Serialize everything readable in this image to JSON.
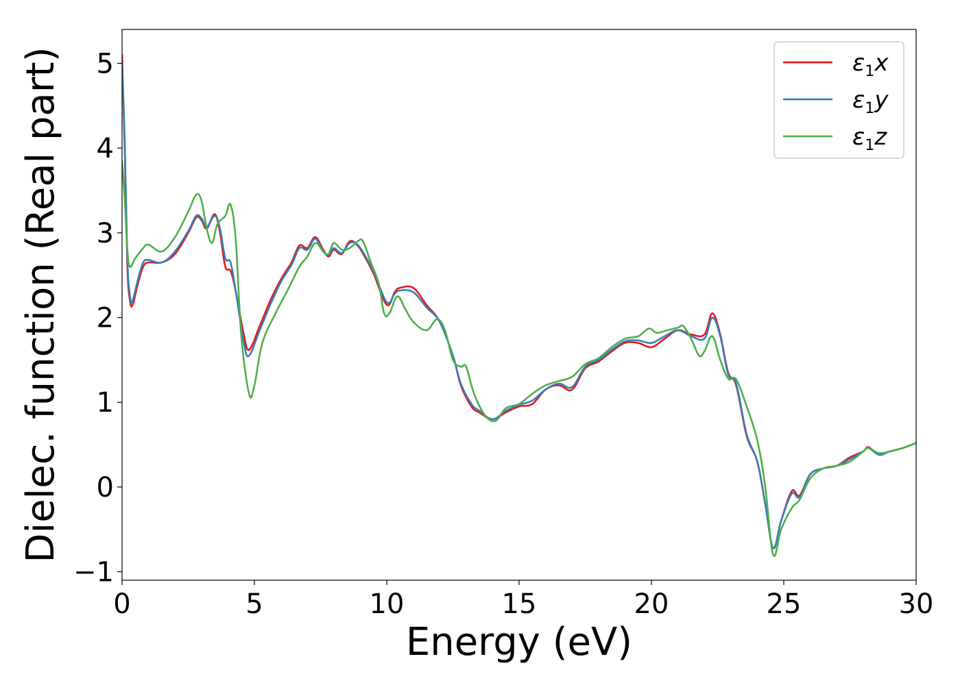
{
  "chart_data": {
    "type": "line",
    "title": "",
    "xlabel": "Energy (eV)",
    "ylabel": "Dielec. function (Real part)",
    "xlim": [
      0,
      30
    ],
    "ylim": [
      -1.1,
      5.4
    ],
    "xticks": [
      0,
      5,
      10,
      15,
      20,
      25,
      30
    ],
    "xtick_labels": [
      "0",
      "5",
      "10",
      "15",
      "20",
      "25",
      "30"
    ],
    "yticks": [
      -1,
      0,
      1,
      2,
      3,
      4,
      5
    ],
    "ytick_labels": [
      "−1",
      "0",
      "1",
      "2",
      "3",
      "4",
      "5"
    ],
    "grid": false,
    "legend_position": "top-right",
    "series": [
      {
        "name": "ε1x",
        "legend_base": "ε",
        "legend_sub": "1",
        "legend_tail": "x",
        "color": "#e41a1c",
        "points": [
          [
            0,
            5.1
          ],
          [
            0.1,
            4.0
          ],
          [
            0.2,
            2.6
          ],
          [
            0.3,
            2.2
          ],
          [
            0.4,
            2.15
          ],
          [
            0.6,
            2.4
          ],
          [
            0.8,
            2.6
          ],
          [
            1.0,
            2.65
          ],
          [
            1.5,
            2.65
          ],
          [
            2.0,
            2.75
          ],
          [
            2.5,
            3.0
          ],
          [
            2.8,
            3.18
          ],
          [
            3.0,
            3.15
          ],
          [
            3.2,
            3.05
          ],
          [
            3.5,
            3.22
          ],
          [
            3.7,
            3.0
          ],
          [
            3.9,
            2.6
          ],
          [
            4.1,
            2.55
          ],
          [
            4.3,
            2.3
          ],
          [
            4.6,
            1.8
          ],
          [
            4.8,
            1.62
          ],
          [
            5.2,
            1.9
          ],
          [
            5.6,
            2.2
          ],
          [
            6.0,
            2.45
          ],
          [
            6.4,
            2.65
          ],
          [
            6.7,
            2.85
          ],
          [
            7.0,
            2.82
          ],
          [
            7.3,
            2.95
          ],
          [
            7.6,
            2.8
          ],
          [
            7.8,
            2.72
          ],
          [
            8.0,
            2.8
          ],
          [
            8.3,
            2.75
          ],
          [
            8.6,
            2.9
          ],
          [
            8.9,
            2.85
          ],
          [
            9.2,
            2.7
          ],
          [
            9.5,
            2.52
          ],
          [
            10.0,
            2.15
          ],
          [
            10.3,
            2.3
          ],
          [
            10.5,
            2.35
          ],
          [
            11.0,
            2.35
          ],
          [
            11.5,
            2.15
          ],
          [
            12.0,
            1.95
          ],
          [
            12.5,
            1.55
          ],
          [
            12.8,
            1.2
          ],
          [
            13.2,
            0.95
          ],
          [
            13.5,
            0.88
          ],
          [
            14.0,
            0.8
          ],
          [
            14.5,
            0.88
          ],
          [
            15.0,
            0.95
          ],
          [
            15.5,
            0.98
          ],
          [
            16.0,
            1.15
          ],
          [
            16.5,
            1.2
          ],
          [
            17.0,
            1.15
          ],
          [
            17.5,
            1.4
          ],
          [
            18.0,
            1.48
          ],
          [
            18.5,
            1.6
          ],
          [
            19.0,
            1.7
          ],
          [
            19.5,
            1.7
          ],
          [
            20.0,
            1.65
          ],
          [
            20.5,
            1.75
          ],
          [
            21.0,
            1.85
          ],
          [
            21.5,
            1.8
          ],
          [
            22.0,
            1.8
          ],
          [
            22.3,
            2.05
          ],
          [
            22.6,
            1.8
          ],
          [
            22.9,
            1.35
          ],
          [
            23.2,
            1.2
          ],
          [
            23.6,
            0.6
          ],
          [
            24.0,
            0.3
          ],
          [
            24.3,
            -0.2
          ],
          [
            24.6,
            -0.72
          ],
          [
            24.9,
            -0.4
          ],
          [
            25.3,
            -0.05
          ],
          [
            25.6,
            -0.1
          ],
          [
            26.0,
            0.15
          ],
          [
            26.5,
            0.22
          ],
          [
            27.0,
            0.25
          ],
          [
            27.5,
            0.35
          ],
          [
            28.0,
            0.42
          ],
          [
            28.2,
            0.47
          ],
          [
            28.6,
            0.38
          ],
          [
            29.0,
            0.42
          ],
          [
            29.5,
            0.46
          ],
          [
            30.0,
            0.52
          ]
        ]
      },
      {
        "name": "ε1y",
        "legend_base": "ε",
        "legend_sub": "1",
        "legend_tail": "y",
        "color": "#377eb8",
        "points": [
          [
            0,
            5.0
          ],
          [
            0.1,
            4.1
          ],
          [
            0.2,
            2.7
          ],
          [
            0.3,
            2.25
          ],
          [
            0.4,
            2.2
          ],
          [
            0.6,
            2.45
          ],
          [
            0.8,
            2.65
          ],
          [
            1.0,
            2.68
          ],
          [
            1.5,
            2.65
          ],
          [
            2.0,
            2.78
          ],
          [
            2.5,
            3.02
          ],
          [
            2.8,
            3.2
          ],
          [
            3.0,
            3.17
          ],
          [
            3.2,
            3.07
          ],
          [
            3.5,
            3.2
          ],
          [
            3.7,
            3.05
          ],
          [
            3.9,
            2.7
          ],
          [
            4.1,
            2.65
          ],
          [
            4.3,
            2.3
          ],
          [
            4.6,
            1.7
          ],
          [
            4.8,
            1.55
          ],
          [
            5.2,
            1.85
          ],
          [
            5.6,
            2.15
          ],
          [
            6.0,
            2.42
          ],
          [
            6.4,
            2.62
          ],
          [
            6.7,
            2.82
          ],
          [
            7.0,
            2.8
          ],
          [
            7.3,
            2.93
          ],
          [
            7.6,
            2.78
          ],
          [
            7.8,
            2.74
          ],
          [
            8.0,
            2.82
          ],
          [
            8.3,
            2.76
          ],
          [
            8.6,
            2.88
          ],
          [
            8.9,
            2.86
          ],
          [
            9.2,
            2.72
          ],
          [
            9.5,
            2.55
          ],
          [
            10.0,
            2.18
          ],
          [
            10.3,
            2.28
          ],
          [
            10.5,
            2.32
          ],
          [
            11.0,
            2.3
          ],
          [
            11.5,
            2.12
          ],
          [
            12.0,
            1.95
          ],
          [
            12.5,
            1.55
          ],
          [
            12.8,
            1.22
          ],
          [
            13.2,
            0.98
          ],
          [
            13.5,
            0.9
          ],
          [
            14.0,
            0.8
          ],
          [
            14.5,
            0.9
          ],
          [
            15.0,
            0.97
          ],
          [
            15.5,
            1.02
          ],
          [
            16.0,
            1.15
          ],
          [
            16.5,
            1.22
          ],
          [
            17.0,
            1.18
          ],
          [
            17.5,
            1.42
          ],
          [
            18.0,
            1.5
          ],
          [
            18.5,
            1.62
          ],
          [
            19.0,
            1.72
          ],
          [
            19.5,
            1.73
          ],
          [
            20.0,
            1.7
          ],
          [
            20.5,
            1.78
          ],
          [
            21.0,
            1.85
          ],
          [
            21.5,
            1.78
          ],
          [
            22.0,
            1.75
          ],
          [
            22.3,
            2.0
          ],
          [
            22.6,
            1.78
          ],
          [
            22.9,
            1.33
          ],
          [
            23.2,
            1.22
          ],
          [
            23.6,
            0.62
          ],
          [
            24.0,
            0.3
          ],
          [
            24.3,
            -0.2
          ],
          [
            24.6,
            -0.72
          ],
          [
            24.9,
            -0.4
          ],
          [
            25.3,
            -0.08
          ],
          [
            25.6,
            -0.12
          ],
          [
            26.0,
            0.15
          ],
          [
            26.5,
            0.22
          ],
          [
            27.0,
            0.25
          ],
          [
            27.5,
            0.33
          ],
          [
            28.0,
            0.42
          ],
          [
            28.2,
            0.46
          ],
          [
            28.6,
            0.38
          ],
          [
            29.0,
            0.42
          ],
          [
            29.5,
            0.46
          ],
          [
            30.0,
            0.52
          ]
        ]
      },
      {
        "name": "ε1z",
        "legend_base": "ε",
        "legend_sub": "1",
        "legend_tail": "z",
        "color": "#4daf4a",
        "points": [
          [
            0,
            3.85
          ],
          [
            0.1,
            3.4
          ],
          [
            0.2,
            2.8
          ],
          [
            0.3,
            2.6
          ],
          [
            0.5,
            2.7
          ],
          [
            0.8,
            2.82
          ],
          [
            1.0,
            2.86
          ],
          [
            1.5,
            2.78
          ],
          [
            2.0,
            2.95
          ],
          [
            2.5,
            3.25
          ],
          [
            2.8,
            3.45
          ],
          [
            3.0,
            3.38
          ],
          [
            3.2,
            3.05
          ],
          [
            3.4,
            2.88
          ],
          [
            3.6,
            3.1
          ],
          [
            3.9,
            3.2
          ],
          [
            4.1,
            3.33
          ],
          [
            4.3,
            2.9
          ],
          [
            4.5,
            1.8
          ],
          [
            4.8,
            1.1
          ],
          [
            5.0,
            1.2
          ],
          [
            5.3,
            1.7
          ],
          [
            5.8,
            2.05
          ],
          [
            6.3,
            2.35
          ],
          [
            6.7,
            2.6
          ],
          [
            7.0,
            2.72
          ],
          [
            7.3,
            2.88
          ],
          [
            7.6,
            2.78
          ],
          [
            7.8,
            2.75
          ],
          [
            8.0,
            2.88
          ],
          [
            8.3,
            2.8
          ],
          [
            8.6,
            2.82
          ],
          [
            8.9,
            2.9
          ],
          [
            9.1,
            2.9
          ],
          [
            9.4,
            2.65
          ],
          [
            9.7,
            2.4
          ],
          [
            9.9,
            2.05
          ],
          [
            10.1,
            2.05
          ],
          [
            10.4,
            2.25
          ],
          [
            10.7,
            2.1
          ],
          [
            11.0,
            1.95
          ],
          [
            11.5,
            1.85
          ],
          [
            11.9,
            1.98
          ],
          [
            12.2,
            1.85
          ],
          [
            12.5,
            1.5
          ],
          [
            12.8,
            1.42
          ],
          [
            13.0,
            1.42
          ],
          [
            13.3,
            1.1
          ],
          [
            13.7,
            0.85
          ],
          [
            14.1,
            0.78
          ],
          [
            14.5,
            0.93
          ],
          [
            15.0,
            0.98
          ],
          [
            15.5,
            1.1
          ],
          [
            16.0,
            1.2
          ],
          [
            16.5,
            1.25
          ],
          [
            17.0,
            1.3
          ],
          [
            17.5,
            1.45
          ],
          [
            18.0,
            1.52
          ],
          [
            18.5,
            1.65
          ],
          [
            19.0,
            1.75
          ],
          [
            19.5,
            1.78
          ],
          [
            19.9,
            1.87
          ],
          [
            20.2,
            1.82
          ],
          [
            20.6,
            1.85
          ],
          [
            21.0,
            1.88
          ],
          [
            21.2,
            1.9
          ],
          [
            21.5,
            1.75
          ],
          [
            21.8,
            1.55
          ],
          [
            22.0,
            1.6
          ],
          [
            22.3,
            1.78
          ],
          [
            22.6,
            1.5
          ],
          [
            22.9,
            1.28
          ],
          [
            23.2,
            1.27
          ],
          [
            23.6,
            0.95
          ],
          [
            24.0,
            0.55
          ],
          [
            24.3,
            0.0
          ],
          [
            24.6,
            -0.8
          ],
          [
            24.9,
            -0.5
          ],
          [
            25.3,
            -0.25
          ],
          [
            25.6,
            -0.15
          ],
          [
            26.0,
            0.1
          ],
          [
            26.5,
            0.22
          ],
          [
            27.0,
            0.25
          ],
          [
            27.5,
            0.3
          ],
          [
            28.0,
            0.42
          ],
          [
            28.2,
            0.46
          ],
          [
            28.6,
            0.4
          ],
          [
            29.0,
            0.42
          ],
          [
            29.5,
            0.46
          ],
          [
            30.0,
            0.52
          ]
        ]
      }
    ]
  }
}
